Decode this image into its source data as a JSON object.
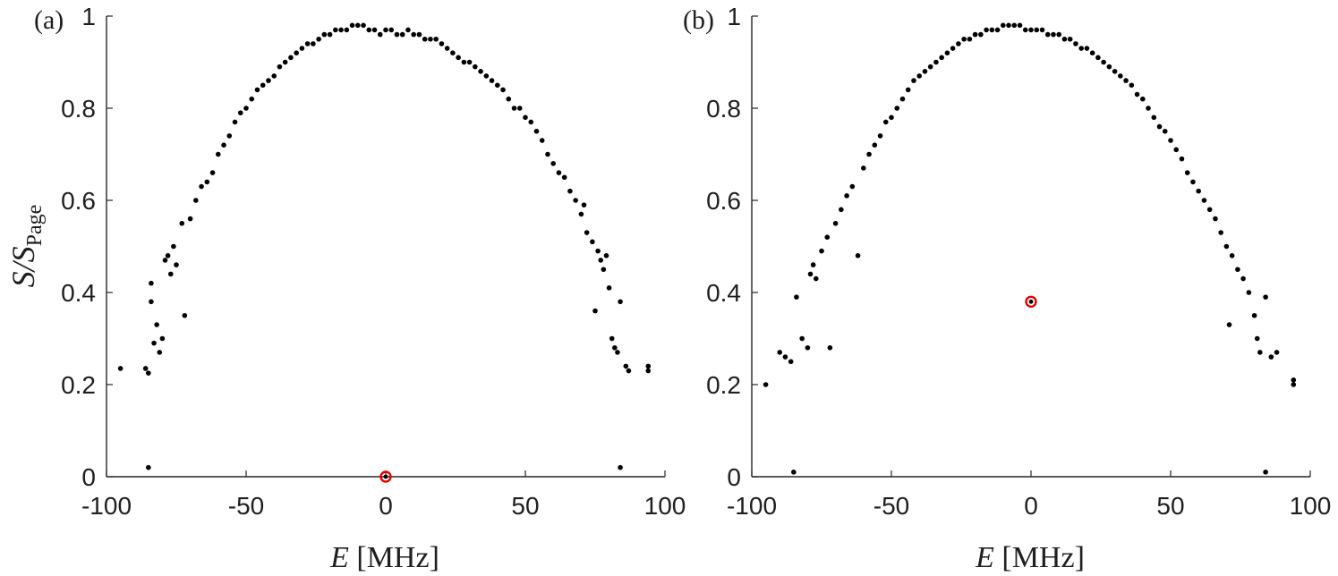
{
  "chart_data": [
    {
      "type": "scatter",
      "panel_label": "(a)",
      "xlabel_var": "E",
      "xlabel_unit": "[MHz]",
      "ylabel_var": "S/S",
      "ylabel_sub": "Page",
      "xlim": [
        -100,
        100
      ],
      "ylim": [
        0,
        1
      ],
      "xticks": [
        "-100",
        "-50",
        "0",
        "50",
        "100"
      ],
      "yticks": [
        "0",
        "0.2",
        "0.4",
        "0.6",
        "0.8",
        "1"
      ],
      "grid": false,
      "marker_color": "#000000",
      "highlight_color": "#e60000",
      "x": [
        -95,
        -86,
        -85,
        -85,
        -84,
        -84,
        -83,
        -82,
        -81,
        -80,
        -79,
        -78,
        -77,
        -76,
        -75,
        -73,
        -72,
        -70,
        -68,
        -66,
        -64,
        -62,
        -60,
        -58,
        -56,
        -54,
        -52,
        -50,
        -48,
        -46,
        -44,
        -42,
        -40,
        -38,
        -36,
        -34,
        -32,
        -30,
        -28,
        -26,
        -24,
        -22,
        -20,
        -18,
        -16,
        -14,
        -12,
        -10,
        -8,
        -6,
        -4,
        -2,
        0,
        2,
        4,
        6,
        8,
        10,
        12,
        14,
        16,
        18,
        20,
        22,
        24,
        26,
        28,
        30,
        32,
        34,
        36,
        38,
        40,
        42,
        44,
        46,
        48,
        50,
        52,
        54,
        56,
        58,
        60,
        62,
        64,
        66,
        68,
        70,
        71,
        72,
        74,
        75,
        76,
        77,
        78,
        79,
        80,
        81,
        82,
        83,
        84,
        84,
        86,
        87,
        94,
        94
      ],
      "y": [
        0.235,
        0.235,
        0.225,
        0.02,
        0.42,
        0.38,
        0.29,
        0.33,
        0.27,
        0.3,
        0.47,
        0.48,
        0.44,
        0.5,
        0.46,
        0.55,
        0.35,
        0.56,
        0.6,
        0.63,
        0.64,
        0.66,
        0.7,
        0.72,
        0.74,
        0.77,
        0.79,
        0.8,
        0.82,
        0.84,
        0.85,
        0.86,
        0.87,
        0.89,
        0.9,
        0.91,
        0.92,
        0.93,
        0.94,
        0.94,
        0.95,
        0.96,
        0.96,
        0.97,
        0.97,
        0.97,
        0.98,
        0.98,
        0.98,
        0.97,
        0.97,
        0.96,
        0.97,
        0.97,
        0.96,
        0.96,
        0.97,
        0.96,
        0.96,
        0.95,
        0.95,
        0.95,
        0.94,
        0.93,
        0.92,
        0.91,
        0.9,
        0.9,
        0.89,
        0.88,
        0.87,
        0.86,
        0.85,
        0.84,
        0.82,
        0.8,
        0.8,
        0.78,
        0.77,
        0.75,
        0.73,
        0.7,
        0.68,
        0.66,
        0.65,
        0.62,
        0.6,
        0.57,
        0.59,
        0.53,
        0.51,
        0.36,
        0.49,
        0.47,
        0.45,
        0.48,
        0.41,
        0.3,
        0.28,
        0.27,
        0.02,
        0.38,
        0.24,
        0.23,
        0.23,
        0.24
      ],
      "highlight": {
        "x": 0,
        "y": 0.0
      }
    },
    {
      "type": "scatter",
      "panel_label": "(b)",
      "xlabel_var": "E",
      "xlabel_unit": "[MHz]",
      "xlim": [
        -100,
        100
      ],
      "ylim": [
        0,
        1
      ],
      "xticks": [
        "-100",
        "-50",
        "0",
        "50",
        "100"
      ],
      "yticks": [
        "0",
        "0.2",
        "0.4",
        "0.6",
        "0.8",
        "1"
      ],
      "grid": false,
      "marker_color": "#000000",
      "highlight_color": "#e60000",
      "x": [
        -95,
        -90,
        -88,
        -86,
        -85,
        -84,
        -82,
        -80,
        -79,
        -78,
        -77,
        -75,
        -73,
        -72,
        -70,
        -68,
        -66,
        -64,
        -62,
        -60,
        -58,
        -56,
        -54,
        -52,
        -50,
        -48,
        -46,
        -44,
        -42,
        -40,
        -38,
        -36,
        -34,
        -32,
        -30,
        -28,
        -26,
        -24,
        -22,
        -20,
        -18,
        -16,
        -14,
        -12,
        -10,
        -8,
        -6,
        -4,
        -2,
        0,
        2,
        4,
        6,
        8,
        10,
        12,
        14,
        16,
        18,
        20,
        22,
        24,
        26,
        28,
        30,
        32,
        34,
        36,
        38,
        40,
        42,
        44,
        46,
        48,
        50,
        52,
        54,
        56,
        58,
        60,
        62,
        64,
        66,
        68,
        70,
        71,
        72,
        74,
        76,
        78,
        80,
        81,
        82,
        84,
        84,
        86,
        88,
        94,
        94
      ],
      "y": [
        0.2,
        0.27,
        0.26,
        0.25,
        0.01,
        0.39,
        0.3,
        0.28,
        0.44,
        0.46,
        0.43,
        0.49,
        0.52,
        0.28,
        0.55,
        0.58,
        0.61,
        0.63,
        0.48,
        0.67,
        0.7,
        0.72,
        0.74,
        0.77,
        0.78,
        0.8,
        0.82,
        0.84,
        0.86,
        0.87,
        0.88,
        0.89,
        0.9,
        0.91,
        0.92,
        0.93,
        0.94,
        0.95,
        0.95,
        0.96,
        0.96,
        0.97,
        0.97,
        0.97,
        0.98,
        0.98,
        0.98,
        0.98,
        0.97,
        0.97,
        0.97,
        0.97,
        0.96,
        0.96,
        0.96,
        0.95,
        0.95,
        0.94,
        0.93,
        0.93,
        0.92,
        0.91,
        0.9,
        0.89,
        0.88,
        0.87,
        0.86,
        0.85,
        0.83,
        0.82,
        0.8,
        0.78,
        0.76,
        0.75,
        0.73,
        0.71,
        0.69,
        0.66,
        0.64,
        0.62,
        0.6,
        0.58,
        0.56,
        0.53,
        0.5,
        0.33,
        0.48,
        0.45,
        0.43,
        0.4,
        0.35,
        0.3,
        0.27,
        0.39,
        0.01,
        0.26,
        0.27,
        0.2,
        0.21
      ],
      "highlight": {
        "x": 0,
        "y": 0.38
      }
    }
  ]
}
